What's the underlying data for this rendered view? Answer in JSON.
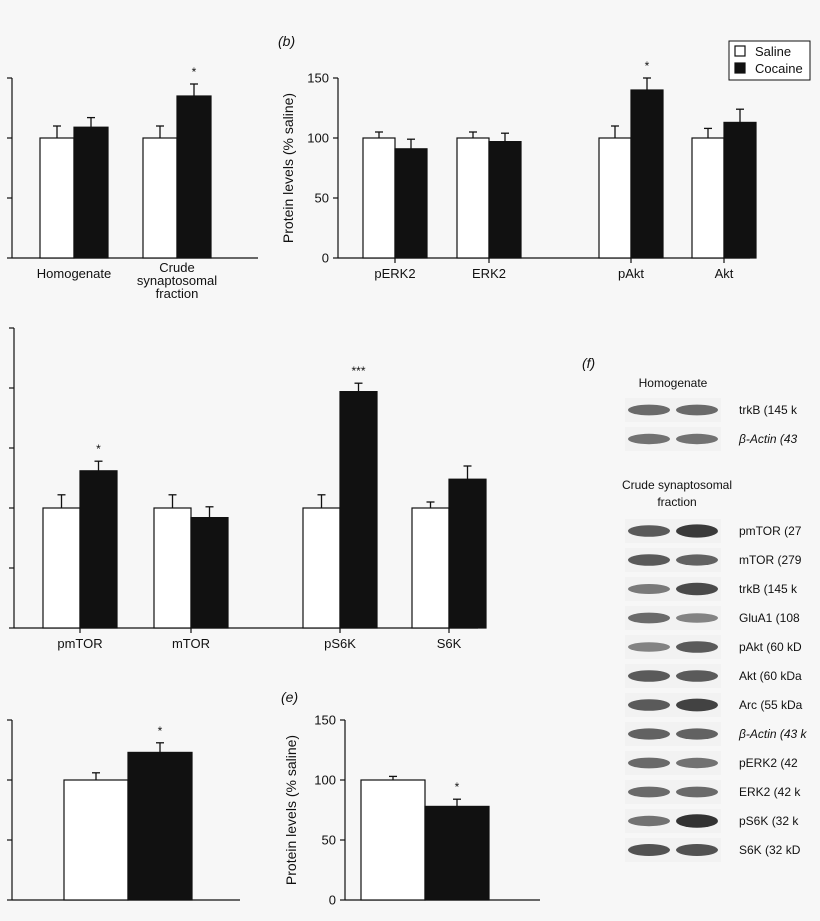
{
  "legend": {
    "saline_label": "Saline",
    "cocaine_label": "Cocaine"
  },
  "colors": {
    "saline": "#ffffff",
    "cocaine": "#111111",
    "axis": "#111111"
  },
  "panels": {
    "b": "(b)",
    "e": "(e)",
    "f": "(f)"
  },
  "chart_data": [
    {
      "id": "a",
      "type": "bar",
      "categories": [
        "Homogenate",
        "Crude synaptosomal fraction"
      ],
      "category_lines": [
        [
          "Homogenate"
        ],
        [
          "Crude",
          "synaptosomal",
          "fraction"
        ]
      ],
      "series": [
        {
          "name": "Saline",
          "values": [
            100,
            100
          ],
          "errors": [
            10,
            10
          ]
        },
        {
          "name": "Cocaine",
          "values": [
            109,
            135
          ],
          "errors": [
            8,
            10
          ]
        }
      ],
      "significance": [
        "",
        "*"
      ],
      "ylim": [
        0,
        150
      ]
    },
    {
      "id": "b",
      "type": "bar",
      "categories": [
        "pERK2",
        "ERK2",
        "pAkt",
        "Akt"
      ],
      "category_lines": [
        [
          "pERK2"
        ],
        [
          "ERK2"
        ],
        [
          "pAkt"
        ],
        [
          "Akt"
        ]
      ],
      "series": [
        {
          "name": "Saline",
          "values": [
            100,
            100,
            100,
            100
          ],
          "errors": [
            5,
            5,
            10,
            8
          ]
        },
        {
          "name": "Cocaine",
          "values": [
            91,
            97,
            140,
            113
          ],
          "errors": [
            8,
            7,
            10,
            11
          ]
        }
      ],
      "significance": [
        "",
        "",
        "*",
        ""
      ],
      "ylabel": "Protein levels (% saline)",
      "yticks": [
        0,
        50,
        100,
        150
      ],
      "ylim": [
        0,
        150
      ]
    },
    {
      "id": "c",
      "type": "bar",
      "categories": [
        "pmTOR",
        "mTOR",
        "pS6K",
        "S6K"
      ],
      "category_lines": [
        [
          "pmTOR"
        ],
        [
          "mTOR"
        ],
        [
          "pS6K"
        ],
        [
          "S6K"
        ]
      ],
      "series": [
        {
          "name": "Saline",
          "values": [
            100,
            100,
            100,
            100
          ],
          "errors": [
            11,
            11,
            11,
            5
          ]
        },
        {
          "name": "Cocaine",
          "values": [
            131,
            92,
            197,
            124
          ],
          "errors": [
            8,
            9,
            7,
            11
          ]
        }
      ],
      "significance": [
        "*",
        "",
        "***",
        ""
      ],
      "ylim": [
        0,
        250
      ]
    },
    {
      "id": "d",
      "type": "bar",
      "categories": [
        ""
      ],
      "series": [
        {
          "name": "Saline",
          "values": [
            100
          ],
          "errors": [
            6
          ]
        },
        {
          "name": "Cocaine",
          "values": [
            123
          ],
          "errors": [
            8
          ]
        }
      ],
      "significance": [
        "*"
      ],
      "ylim": [
        0,
        150
      ]
    },
    {
      "id": "e",
      "type": "bar",
      "categories": [
        ""
      ],
      "series": [
        {
          "name": "Saline",
          "values": [
            100
          ],
          "errors": [
            3
          ]
        },
        {
          "name": "Cocaine",
          "values": [
            78
          ],
          "errors": [
            6
          ]
        }
      ],
      "significance": [
        "*"
      ],
      "ylabel": "Protein levels (% saline)",
      "yticks": [
        0,
        50,
        100,
        150
      ],
      "ylim": [
        0,
        150
      ]
    }
  ],
  "blots": {
    "homogenate_title": "Homogenate",
    "homogenate_bands": [
      {
        "label": "trkB (145 k",
        "italic": false,
        "saline": 0.6,
        "cocaine": 0.6
      },
      {
        "label": "β-Actin (43",
        "italic": true,
        "saline": 0.55,
        "cocaine": 0.55
      }
    ],
    "crude_title_lines": [
      "Crude synaptosomal",
      "fraction"
    ],
    "crude_bands": [
      {
        "label": "pmTOR (27",
        "italic": false,
        "saline": 0.7,
        "cocaine": 0.9
      },
      {
        "label": "mTOR (279",
        "italic": false,
        "saline": 0.7,
        "cocaine": 0.65
      },
      {
        "label": "trkB (145 k",
        "italic": false,
        "saline": 0.5,
        "cocaine": 0.8
      },
      {
        "label": "GluA1 (108",
        "italic": false,
        "saline": 0.6,
        "cocaine": 0.45
      },
      {
        "label": "pAkt (60 kD",
        "italic": false,
        "saline": 0.45,
        "cocaine": 0.7
      },
      {
        "label": "Akt (60 kDa",
        "italic": false,
        "saline": 0.7,
        "cocaine": 0.7
      },
      {
        "label": "Arc (55 kDa",
        "italic": false,
        "saline": 0.7,
        "cocaine": 0.85
      },
      {
        "label": "β-Actin (43 k",
        "italic": true,
        "saline": 0.65,
        "cocaine": 0.65
      },
      {
        "label": "pERK2 (42",
        "italic": false,
        "saline": 0.6,
        "cocaine": 0.55
      },
      {
        "label": "ERK2 (42 k",
        "italic": false,
        "saline": 0.6,
        "cocaine": 0.6
      },
      {
        "label": "pS6K (32 k",
        "italic": false,
        "saline": 0.55,
        "cocaine": 0.95
      },
      {
        "label": "S6K (32 kD",
        "italic": false,
        "saline": 0.75,
        "cocaine": 0.75
      }
    ]
  }
}
